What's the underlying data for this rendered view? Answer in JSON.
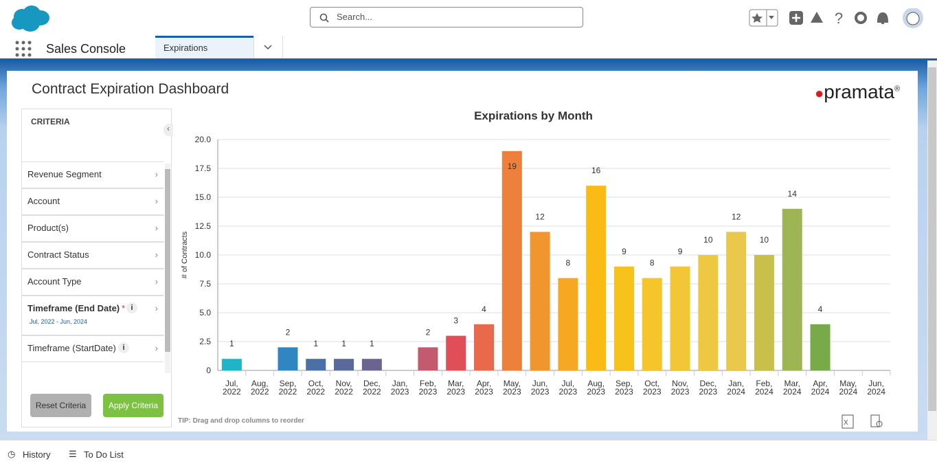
{
  "header": {
    "search_placeholder": "Search..."
  },
  "nav": {
    "app_name": "Sales Console",
    "tab": "Expirations"
  },
  "dashboard": {
    "title": "Contract Expiration Dashboard",
    "logo_name": "pramata",
    "logo_mark": "®",
    "tip": "TIP: Drag and drop columns to reorder"
  },
  "criteria": {
    "heading": "CRITERIA",
    "items": [
      "Revenue Segment",
      "Account",
      "Product(s)",
      "Contract Status",
      "Account Type",
      "Timeframe (End Date)",
      "Timeframe (StartDate)"
    ],
    "required_mark": "*",
    "timeframe_value": "Jul, 2022 - Jun, 2024",
    "reset": "Reset Criteria",
    "apply": "Apply Criteria"
  },
  "footer": {
    "history": "History",
    "todo": "To Do List"
  },
  "chart_data": {
    "type": "bar",
    "title": "Expirations by Month",
    "y_label": "# of Contracts",
    "categories": [
      "Jul, 2022",
      "Aug, 2022",
      "Sep, 2022",
      "Oct, 2022",
      "Nov, 2022",
      "Dec, 2022",
      "Jan, 2023",
      "Feb, 2023",
      "Mar, 2023",
      "Apr, 2023",
      "May, 2023",
      "Jun, 2023",
      "Jul, 2023",
      "Aug, 2023",
      "Sep, 2023",
      "Oct, 2023",
      "Nov, 2023",
      "Dec, 2023",
      "Jan, 2024",
      "Feb, 2024",
      "Mar, 2024",
      "Apr, 2024",
      "May, 2024",
      "Jun, 2024"
    ],
    "values": [
      1,
      0,
      2,
      1,
      1,
      1,
      0,
      2,
      3,
      4,
      19,
      12,
      8,
      16,
      9,
      8,
      9,
      10,
      12,
      10,
      14,
      4,
      0,
      0
    ],
    "colors": [
      "#1fb5c9",
      null,
      "#2f86c0",
      "#4a70a6",
      "#596a9a",
      "#6a6590",
      null,
      "#c25b6e",
      "#e04f58",
      "#e86a4b",
      "#ed803a",
      "#f1962f",
      "#f6a823",
      "#fbbb16",
      "#f8c21c",
      "#f5c52a",
      "#f2c634",
      "#eec743",
      "#eac84c",
      "#c9c04b",
      "#9db552",
      "#78aa4a",
      null,
      null
    ],
    "ylim": [
      0,
      20
    ],
    "yticks": [
      0,
      2.5,
      {
        "value": 5,
        "label": "5.0"
      },
      7.5,
      {
        "value": 10,
        "label": "10.0"
      },
      12.5,
      {
        "value": 15,
        "label": "15.0"
      },
      17.5,
      {
        "value": 20,
        "label": "20.0"
      }
    ],
    "grid": true
  }
}
